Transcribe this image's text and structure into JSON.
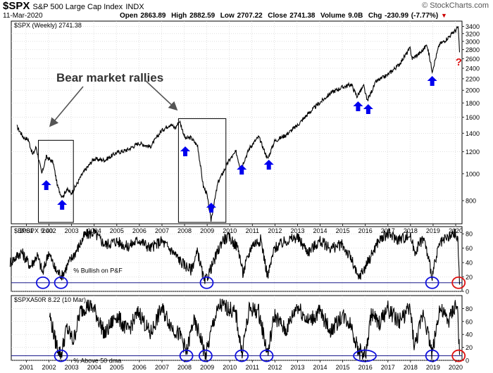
{
  "header": {
    "symbol": "$SPX",
    "name": "S&P 500 Large Cap Index",
    "exchange": "INDX",
    "date": "11-Mar-2020",
    "open_label": "Open",
    "open": "2863.89",
    "high_label": "High",
    "high": "2882.59",
    "low_label": "Low",
    "low": "2707.22",
    "close_label": "Close",
    "close": "2741.38",
    "volume_label": "Volume",
    "volume": "9.0B",
    "chg_label": "Chg",
    "chg": "-230.99 (-7.77%)",
    "brand": "© StockCharts.com"
  },
  "colors": {
    "line": "#000000",
    "arrow": "#0000ee",
    "circle_blue": "#1010dd",
    "circle_red": "#dd1111",
    "question": "#dd1111",
    "grid": "#cccccc",
    "refline": "#1a1a8c"
  },
  "chart_data": [
    {
      "type": "line",
      "title": "$SPX (Weekly) 2741.38",
      "scale": "log",
      "ylim": [
        660,
        3550
      ],
      "y_ticks": [
        800,
        1000,
        1200,
        1400,
        1600,
        1800,
        2000,
        2200,
        2400,
        2600,
        2800,
        3000,
        3200,
        3400
      ],
      "x_ticks": [
        "2001",
        "2002",
        "2003",
        "2004",
        "2005",
        "2006",
        "2007",
        "2008",
        "2009",
        "2010",
        "2011",
        "2012",
        "2013",
        "2014",
        "2015",
        "2016",
        "2017",
        "2018",
        "2019",
        "2020"
      ],
      "series": [
        {
          "x": [
            2000.6,
            2000.9,
            2001.1,
            2001.3,
            2001.45,
            2001.7,
            2001.9,
            2002.2,
            2002.4,
            2002.55,
            2002.65,
            2002.8,
            2003.0,
            2003.2,
            2003.5,
            2004.0,
            2004.5,
            2005.0,
            2005.5,
            2006.0,
            2006.5,
            2007.0,
            2007.4,
            2007.6,
            2007.8,
            2008.05,
            2008.3,
            2008.6,
            2008.85,
            2009.0,
            2009.19,
            2009.5,
            2010.0,
            2010.3,
            2010.5,
            2010.9,
            2011.3,
            2011.7,
            2012.0,
            2012.5,
            2013.0,
            2013.5,
            2014.0,
            2014.5,
            2015.0,
            2015.4,
            2015.65,
            2015.95,
            2016.1,
            2016.5,
            2017.0,
            2017.5,
            2018.0,
            2018.1,
            2018.5,
            2018.75,
            2018.98,
            2019.3,
            2019.5,
            2020.0,
            2020.13,
            2020.19
          ],
          "y": [
            1480,
            1350,
            1330,
            1170,
            1250,
            1000,
            1150,
            1100,
            900,
            840,
            830,
            880,
            850,
            900,
            1000,
            1130,
            1120,
            1190,
            1220,
            1290,
            1250,
            1430,
            1510,
            1460,
            1550,
            1340,
            1350,
            1260,
            900,
            850,
            680,
            930,
            1120,
            1200,
            1040,
            1240,
            1360,
            1130,
            1310,
            1380,
            1490,
            1650,
            1800,
            1960,
            2050,
            2100,
            1900,
            2070,
            1830,
            2150,
            2270,
            2470,
            2830,
            2600,
            2750,
            2920,
            2350,
            2930,
            3000,
            3280,
            3380,
            2741
          ]
        }
      ],
      "annotations": [
        {
          "text": "Bear market rallies"
        },
        {
          "text": "?"
        }
      ],
      "highlight_years": [
        {
          "type": "box",
          "x": [
            2001.55,
            2003.1
          ]
        },
        {
          "type": "box",
          "x": [
            2007.75,
            2009.85
          ]
        }
      ],
      "arrow_x": [
        2001.9,
        2002.6,
        2008.05,
        2009.2,
        2010.55,
        2011.75,
        2015.7,
        2016.15,
        2018.98
      ]
    },
    {
      "type": "line",
      "title": "$BPSPX 9.40",
      "ylim": [
        0,
        90
      ],
      "y_ticks": [
        0,
        20,
        40,
        60,
        80
      ],
      "reference_line": 12,
      "inner_label": "% Bullish on P&F",
      "series": [
        {
          "x": [
            2000.3,
            2000.8,
            2001.2,
            2001.5,
            2001.75,
            2002.0,
            2002.3,
            2002.6,
            2002.9,
            2003.3,
            2003.6,
            2004.0,
            2004.5,
            2005.0,
            2005.5,
            2006.0,
            2006.5,
            2007.0,
            2007.5,
            2007.9,
            2008.3,
            2008.6,
            2008.9,
            2009.3,
            2009.7,
            2010.0,
            2010.4,
            2010.6,
            2011.0,
            2011.4,
            2011.7,
            2012.0,
            2012.5,
            2013.0,
            2013.5,
            2014.0,
            2014.5,
            2015.0,
            2015.4,
            2015.7,
            2015.95,
            2016.2,
            2016.6,
            2017.0,
            2017.5,
            2018.0,
            2018.2,
            2018.6,
            2018.98,
            2019.3,
            2019.7,
            2020.0,
            2020.12,
            2020.19
          ],
          "y": [
            40,
            55,
            35,
            50,
            25,
            55,
            30,
            22,
            40,
            60,
            78,
            82,
            65,
            70,
            62,
            72,
            60,
            70,
            55,
            40,
            30,
            55,
            12,
            40,
            72,
            75,
            60,
            25,
            65,
            72,
            20,
            60,
            70,
            75,
            55,
            70,
            60,
            65,
            45,
            18,
            30,
            45,
            70,
            80,
            72,
            78,
            55,
            75,
            22,
            65,
            75,
            80,
            70,
            9.4
          ]
        }
      ],
      "circle_x": [
        2001.75,
        2002.55,
        2009.0,
        2018.98
      ],
      "red_circle_x": [
        2020.15
      ]
    },
    {
      "type": "line",
      "title": "$SPXA50R 8.22 (10 Mar)",
      "ylim": [
        0,
        100
      ],
      "y_ticks": [
        0,
        20,
        40,
        60,
        80
      ],
      "reference_line": 7,
      "inner_label": "% Above 50 dma",
      "series": [
        {
          "x": [
            2002.05,
            2002.3,
            2002.55,
            2002.8,
            2003.1,
            2003.4,
            2003.7,
            2004.0,
            2004.5,
            2005.0,
            2005.5,
            2006.0,
            2006.5,
            2007.0,
            2007.5,
            2007.9,
            2008.1,
            2008.4,
            2008.7,
            2008.95,
            2009.3,
            2009.6,
            2010.0,
            2010.3,
            2010.55,
            2010.9,
            2011.3,
            2011.7,
            2012.0,
            2012.5,
            2013.0,
            2013.5,
            2014.0,
            2014.5,
            2015.0,
            2015.4,
            2015.7,
            2016.05,
            2016.3,
            2016.6,
            2017.0,
            2017.5,
            2018.0,
            2018.2,
            2018.6,
            2018.98,
            2019.3,
            2019.7,
            2020.0,
            2020.1,
            2020.19
          ],
          "y": [
            70,
            30,
            8,
            50,
            30,
            75,
            85,
            80,
            40,
            70,
            45,
            75,
            40,
            80,
            50,
            35,
            10,
            60,
            40,
            5,
            60,
            85,
            80,
            70,
            12,
            80,
            75,
            10,
            70,
            45,
            85,
            60,
            75,
            45,
            70,
            55,
            15,
            10,
            75,
            55,
            80,
            60,
            80,
            20,
            75,
            10,
            80,
            60,
            85,
            80,
            8.22
          ]
        }
      ],
      "circle_x": [
        2002.55,
        2008.1,
        2008.95,
        2010.55,
        2011.65,
        2016.0,
        2018.98
      ],
      "red_circle_x": [
        2020.15
      ]
    }
  ]
}
